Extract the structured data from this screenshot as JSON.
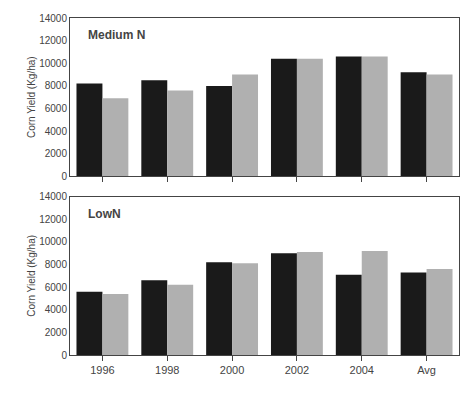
{
  "chart_data": [
    {
      "type": "bar",
      "title": "Medium N",
      "categories": [
        "1996",
        "1998",
        "2000",
        "2002",
        "2004",
        "Avg"
      ],
      "series": [
        {
          "color": "#1a1a1a",
          "values": [
            8200,
            8500,
            8000,
            10400,
            10600,
            9200
          ]
        },
        {
          "color": "#b0b0b0",
          "values": [
            6900,
            7600,
            9000,
            10400,
            10600,
            9000
          ]
        }
      ],
      "ylabel": "Corn Yield (Kg/ha)",
      "ylim": [
        0,
        14000
      ],
      "yticks": [
        0,
        2000,
        4000,
        6000,
        8000,
        10000,
        12000,
        14000
      ],
      "grid": false,
      "tick_labels": "y"
    },
    {
      "type": "bar",
      "title": "LowN",
      "categories": [
        "1996",
        "1998",
        "2000",
        "2002",
        "2004",
        "Avg"
      ],
      "series": [
        {
          "color": "#1a1a1a",
          "values": [
            5600,
            6600,
            8200,
            9000,
            7100,
            7300
          ]
        },
        {
          "color": "#b0b0b0",
          "values": [
            5400,
            6200,
            8100,
            9100,
            9200,
            7600
          ]
        }
      ],
      "ylabel": "Corn Yield (Kg/ha)",
      "ylim": [
        0,
        14000
      ],
      "yticks": [
        0,
        2000,
        4000,
        6000,
        8000,
        10000,
        12000,
        14000
      ],
      "grid": false
    }
  ]
}
